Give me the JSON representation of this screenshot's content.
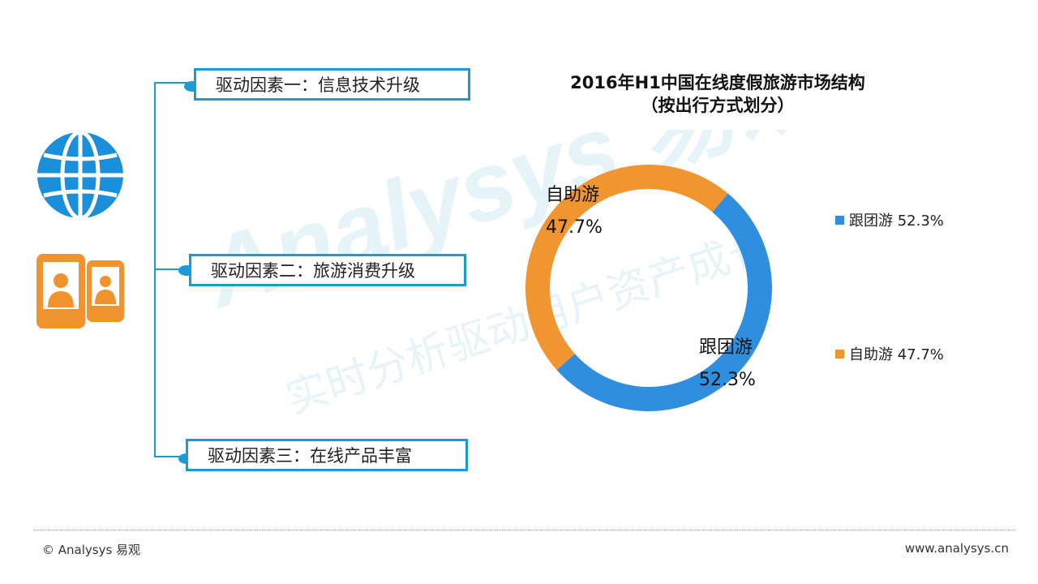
{
  "drivers": [
    {
      "label": "驱动因素一：信息技术升级"
    },
    {
      "label": "驱动因素二：旅游消费升级"
    },
    {
      "label": "驱动因素三：在线产品丰富"
    }
  ],
  "icons": {
    "globe": "globe-icon",
    "phone": "mobile-users-icon"
  },
  "colors": {
    "accent": "#1b9bd1",
    "series_blue": "#2f8fde",
    "series_orange": "#f0952f",
    "icon_orange": "#f0922e"
  },
  "watermark": {
    "brand": "Analysys 易观",
    "slogan": "实时分析驱动用户资产成长"
  },
  "chart_data": {
    "type": "pie",
    "donut": true,
    "title": "2016年H1中国在线度假旅游市场结构",
    "subtitle": "（按出行方式划分）",
    "slices": [
      {
        "name": "跟团游",
        "value": 52.3,
        "label": "52.3%",
        "color": "#2f8fde"
      },
      {
        "name": "自助游",
        "value": 47.7,
        "label": "47.7%",
        "color": "#f0952f"
      }
    ],
    "legend": [
      {
        "text": "跟团游 52.3%",
        "color": "#2f8fde"
      },
      {
        "text": "自助游 47.7%",
        "color": "#f0952f"
      }
    ],
    "legend_position": "right"
  },
  "footer": {
    "copyright": "© Analysys 易观",
    "url": "www.analysys.cn"
  }
}
